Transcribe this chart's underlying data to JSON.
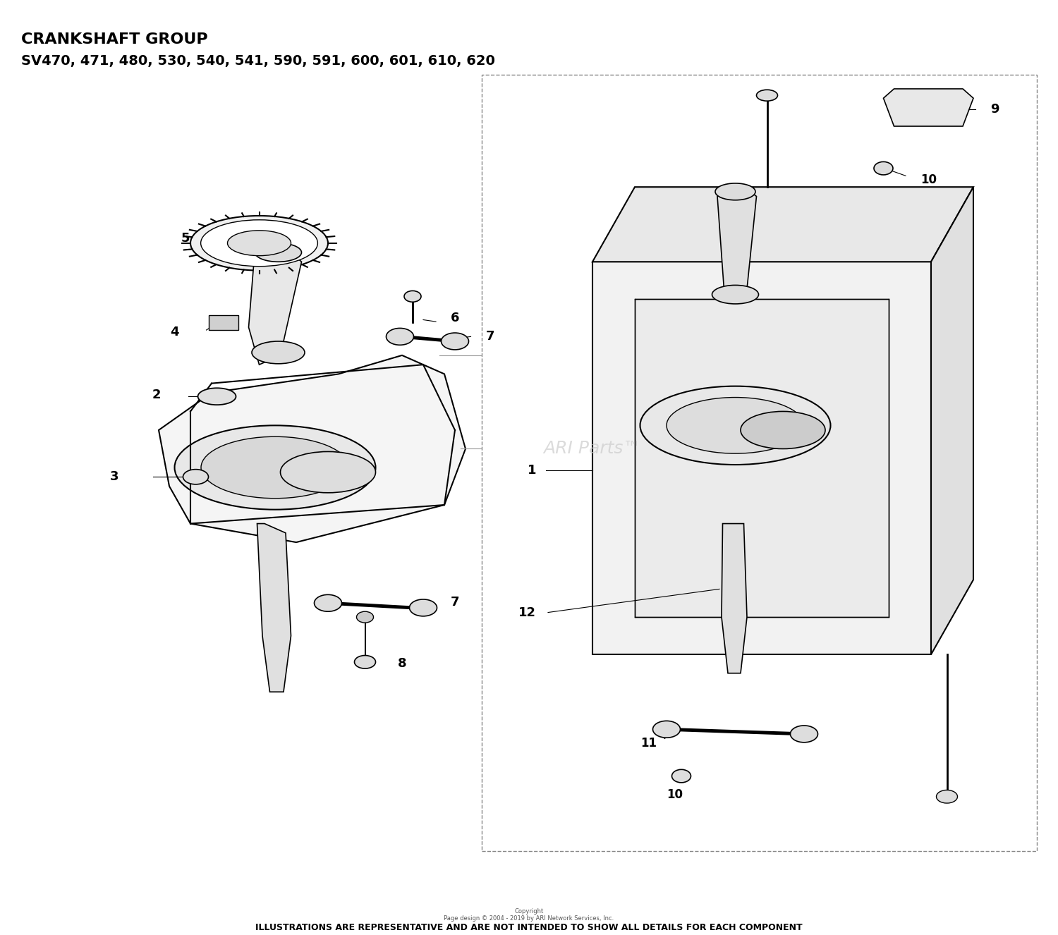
{
  "title_line1": "CRANKSHAFT GROUP",
  "title_line2": "SV470, 471, 480, 530, 540, 541, 590, 591, 600, 601, 610, 620",
  "footer_line1": "Copyright",
  "footer_line2": "Page design © 2004 - 2019 by ARI Network Services, Inc.",
  "footer_line3": "ILLUSTRATIONS ARE REPRESENTATIVE AND ARE NOT INTENDED TO SHOW ALL DETAILS FOR EACH COMPONENT",
  "watermark": "ARI Parts™",
  "bg_color": "#ffffff",
  "line_color": "#000000"
}
